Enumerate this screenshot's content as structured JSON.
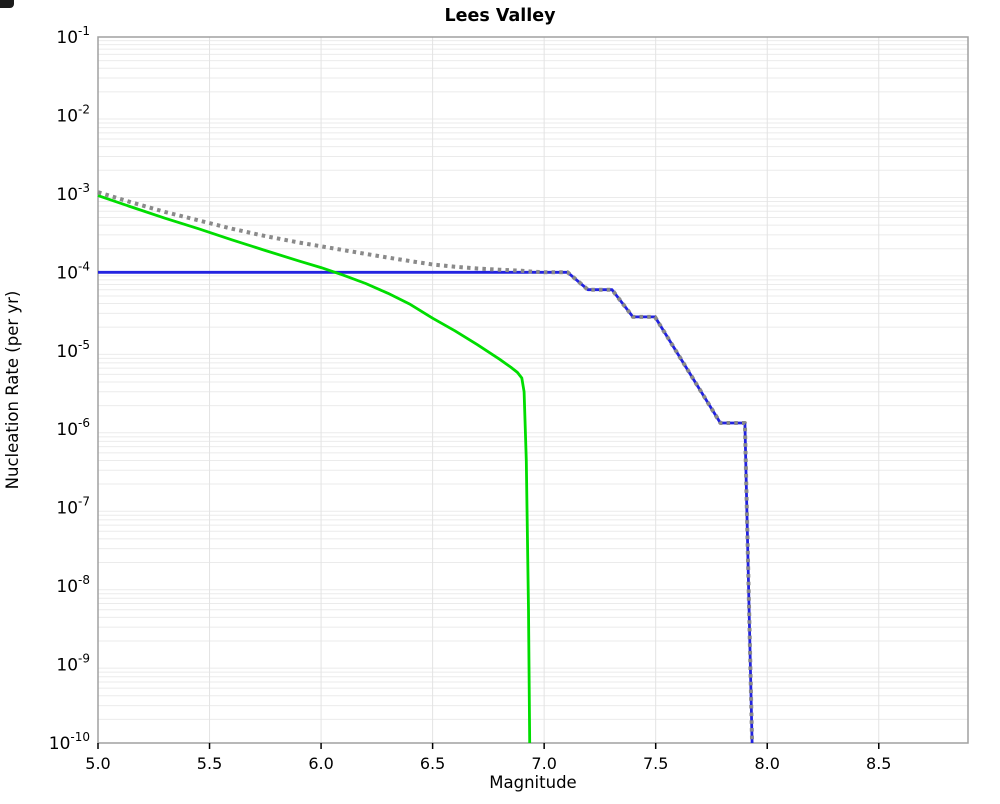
{
  "ui": {
    "corner_artifact_color": "#1c1c1c",
    "frame_color": "#a0a0a0",
    "minor_grid_color": "#ebebeb",
    "vertical_grid_color": "#e3e3e3"
  },
  "chart_data": {
    "type": "line",
    "title": "Lees Valley",
    "xlabel": "Magnitude",
    "ylabel": "Nucleation Rate (per yr)",
    "xlim": [
      5.0,
      8.9
    ],
    "ylim": [
      1e-10,
      0.1
    ],
    "x_ticks": [
      5.0,
      5.5,
      6.0,
      6.5,
      7.0,
      7.5,
      8.0,
      8.5
    ],
    "y_tick_exponents": [
      -1,
      -2,
      -3,
      -4,
      -5,
      -6,
      -7,
      -8,
      -9,
      -10
    ],
    "grid": {
      "horizontal": "log-minor-lines",
      "vertical": "major-ticks-only"
    },
    "legend": "none",
    "series": [
      {
        "name": "blue-line",
        "color": "#2222e0",
        "style": "solid",
        "width": 2.8,
        "points": [
          [
            5.0,
            0.0001
          ],
          [
            7.105,
            0.0001
          ],
          [
            7.196,
            6e-05
          ],
          [
            7.304,
            6e-05
          ],
          [
            7.398,
            2.7e-05
          ],
          [
            7.497,
            2.7e-05
          ],
          [
            7.79,
            1.2e-06
          ],
          [
            7.9,
            1.2e-06
          ],
          [
            7.932,
            1e-10
          ]
        ]
      },
      {
        "name": "green-line",
        "color": "#00dd00",
        "style": "solid",
        "width": 2.8,
        "points": [
          [
            5.0,
            0.00095
          ],
          [
            5.15,
            0.00068
          ],
          [
            5.3,
            0.00049
          ],
          [
            5.45,
            0.00036
          ],
          [
            5.6,
            0.00026
          ],
          [
            5.75,
            0.00019
          ],
          [
            5.9,
            0.00014
          ],
          [
            6.0,
            0.000115
          ],
          [
            6.1,
            9.2e-05
          ],
          [
            6.2,
            7.2e-05
          ],
          [
            6.3,
            5.4e-05
          ],
          [
            6.4,
            3.9e-05
          ],
          [
            6.5,
            2.6e-05
          ],
          [
            6.6,
            1.8e-05
          ],
          [
            6.7,
            1.2e-05
          ],
          [
            6.8,
            7.8e-06
          ],
          [
            6.85,
            6.2e-06
          ],
          [
            6.88,
            5.3e-06
          ],
          [
            6.9,
            4.5e-06
          ],
          [
            6.91,
            3e-06
          ],
          [
            6.92,
            4e-07
          ],
          [
            6.93,
            5e-09
          ],
          [
            6.935,
            1e-10
          ]
        ]
      },
      {
        "name": "gray-dotted-line",
        "color": "#8a8a8a",
        "style": "dotted",
        "width": 4,
        "points": [
          [
            5.0,
            0.00105
          ],
          [
            5.15,
            0.00078
          ],
          [
            5.3,
            0.00059
          ],
          [
            5.45,
            0.00046
          ],
          [
            5.6,
            0.00036
          ],
          [
            5.75,
            0.00029
          ],
          [
            5.9,
            0.00024
          ],
          [
            6.0,
            0.000215
          ],
          [
            6.1,
            0.000192
          ],
          [
            6.2,
            0.000172
          ],
          [
            6.3,
            0.000154
          ],
          [
            6.4,
            0.000139
          ],
          [
            6.5,
            0.000126
          ],
          [
            6.6,
            0.000118
          ],
          [
            6.7,
            0.000112
          ],
          [
            6.8,
            0.000108
          ],
          [
            6.9,
            0.0001045
          ],
          [
            6.95,
            0.000102
          ],
          [
            7.0,
            0.0001
          ],
          [
            7.105,
            0.0001
          ],
          [
            7.196,
            6e-05
          ],
          [
            7.304,
            6e-05
          ],
          [
            7.398,
            2.7e-05
          ],
          [
            7.497,
            2.7e-05
          ],
          [
            7.79,
            1.2e-06
          ],
          [
            7.9,
            1.2e-06
          ],
          [
            7.932,
            1e-10
          ]
        ]
      }
    ]
  }
}
